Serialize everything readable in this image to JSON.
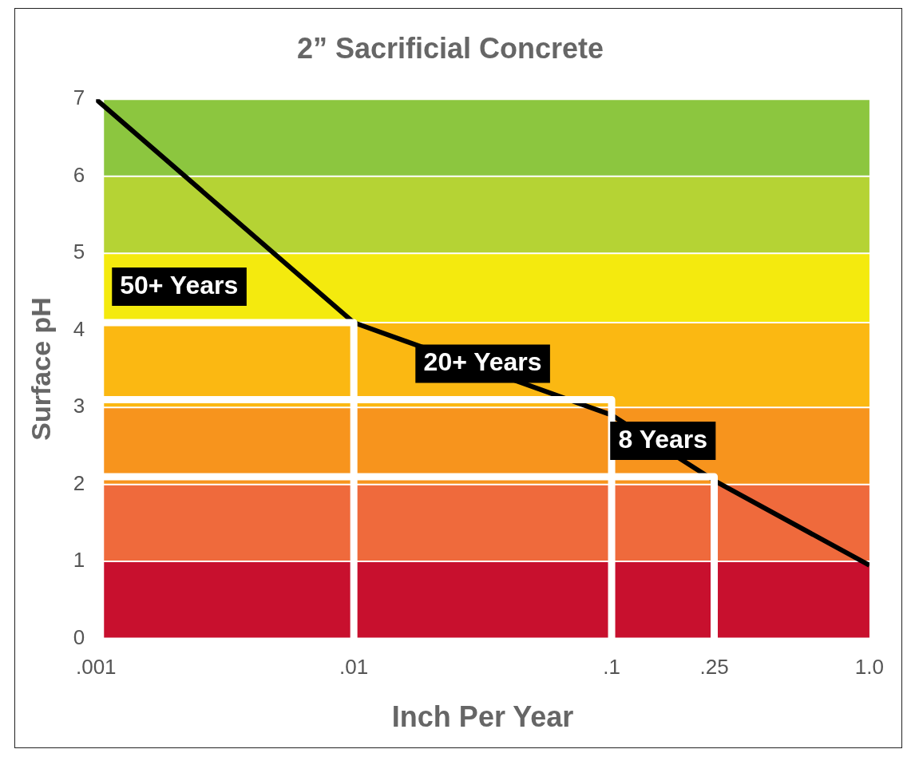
{
  "chart_data": {
    "type": "line",
    "title": "2” Sacrificial Concrete",
    "xlabel": "Inch Per Year",
    "ylabel": "Surface pH",
    "log": "x",
    "xlim": [
      0.001,
      1
    ],
    "xticks": [
      {
        "value": 0.001,
        "label": ".001"
      },
      {
        "value": 0.01,
        "label": ".01"
      },
      {
        "value": 0.1,
        "label": ".1"
      },
      {
        "value": 0.25,
        "label": ".25"
      },
      {
        "value": 1,
        "label": "1.0"
      }
    ],
    "ylim": [
      0,
      7
    ],
    "yticks": [
      0,
      1,
      2,
      3,
      4,
      5,
      6,
      7
    ],
    "grid": false,
    "legend": false,
    "marker": "none",
    "line_style": "solid",
    "bands": [
      {
        "axis": "y",
        "from": 0,
        "to": 1,
        "color": "#c8102e"
      },
      {
        "axis": "y",
        "from": 1,
        "to": 2,
        "color": "#ef6a3c"
      },
      {
        "axis": "y",
        "from": 2,
        "to": 3,
        "color": "#f7941d"
      },
      {
        "axis": "y",
        "from": 3,
        "to": 4.1,
        "color": "#fbb812"
      },
      {
        "axis": "y",
        "from": 4.1,
        "to": 5,
        "color": "#f4ea0e"
      },
      {
        "axis": "y",
        "from": 5,
        "to": 6,
        "color": "#b5d334"
      },
      {
        "axis": "y",
        "from": 6,
        "to": 7,
        "color": "#8cc63f"
      }
    ],
    "series": [
      {
        "color": "#ffffff",
        "x": [
          0.001,
          0.01,
          0.01
        ],
        "values": [
          4.1,
          4.1,
          0
        ]
      },
      {
        "color": "#ffffff",
        "x": [
          0.001,
          0.1,
          0.1
        ],
        "values": [
          3.1,
          3.1,
          0
        ]
      },
      {
        "color": "#ffffff",
        "x": [
          0.001,
          0.25,
          0.25
        ],
        "values": [
          2.1,
          2.1,
          0
        ]
      },
      {
        "color": "#000000",
        "x": [
          0.001,
          0.01,
          0.1,
          0.25,
          1
        ],
        "values": [
          7,
          4.1,
          2.9,
          2.05,
          0.95
        ]
      }
    ],
    "annotations": [
      "50+ Years",
      "20+ Years",
      "8 Years"
    ]
  }
}
